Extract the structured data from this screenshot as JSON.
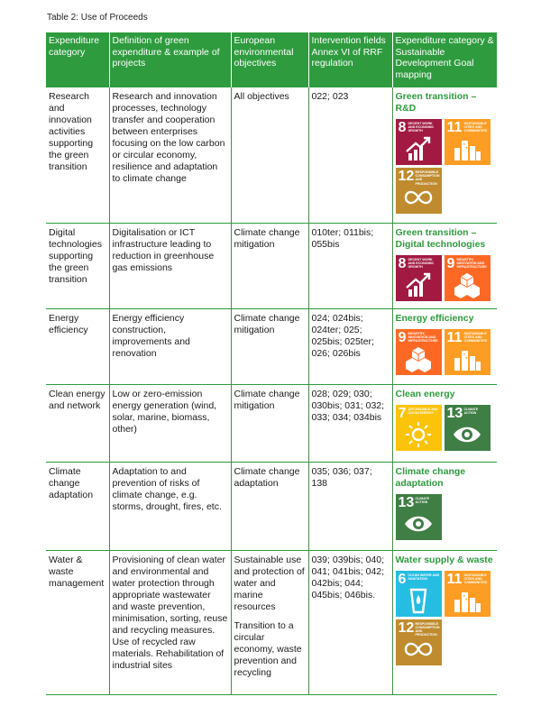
{
  "caption": "Table 2: Use of Proceeds",
  "headers": [
    "Expenditure category",
    "Definition of green expenditure & example of projects",
    "European environmental objectives",
    "Intervention fields Annex VI of RRF regulation",
    "Expenditure category & Sustainable Development Goal mapping"
  ],
  "rows": [
    {
      "category": "Research and innovation activities supporting the green transition",
      "definition": "Research and innovation processes, technology transfer and cooperation between enterprises focusing on the low carbon or circular economy, resilience and adaptation to climate change",
      "objectives": "All objectives",
      "objectives2": "",
      "fields": "022; 023",
      "sdg_title": "Green transition – R&D",
      "sdgs": [
        {
          "num": "8",
          "label": "Decent work and economic growth",
          "icon": "growth-chart-icon"
        },
        {
          "num": "11",
          "label": "Sustainable cities and communities",
          "icon": "city-buildings-icon"
        },
        {
          "num": "12",
          "label": "Responsible consumption and production",
          "icon": "infinity-loop-icon"
        }
      ]
    },
    {
      "category": "Digital technologies supporting the green transition",
      "definition": "Digitalisation or ICT infrastructure leading to reduction in greenhouse gas emissions",
      "objectives": "Climate change mitigation",
      "objectives2": "",
      "fields": "010ter; 011bis; 055bis",
      "sdg_title": "Green transition – Digital technologies",
      "sdgs": [
        {
          "num": "8",
          "label": "Decent work and economic growth",
          "icon": "growth-chart-icon"
        },
        {
          "num": "9",
          "label": "Industry, innovation and infrastructure",
          "icon": "cubes-icon"
        }
      ]
    },
    {
      "category": "Energy efficiency",
      "definition": "Energy efficiency construction, improvements and renovation",
      "objectives": "Climate change mitigation",
      "objectives2": "",
      "fields": "024; 024bis; 024ter; 025; 025bis; 025ter; 026; 026bis",
      "sdg_title": "Energy efficiency",
      "sdgs": [
        {
          "num": "9",
          "label": "Industry, innovation and infrastructure",
          "icon": "cubes-icon"
        },
        {
          "num": "11",
          "label": "Sustainable cities and communities",
          "icon": "city-buildings-icon"
        }
      ]
    },
    {
      "category": "Clean energy and network",
      "definition": "Low or zero-emission energy generation (wind, solar, marine, biomass, other)",
      "objectives": "Climate change mitigation",
      "objectives2": "",
      "fields": "028; 029; 030; 030bis; 031; 032; 033; 034; 034bis",
      "sdg_title": "Clean energy",
      "sdgs": [
        {
          "num": "7",
          "label": "Affordable and clean energy",
          "icon": "sun-power-icon"
        },
        {
          "num": "13",
          "label": "Climate action",
          "icon": "earth-eye-icon"
        }
      ]
    },
    {
      "category": "Climate change adaptation",
      "definition": "Adaptation to and prevention of risks of climate change, e.g. storms, drought, fires, etc.",
      "objectives": "Climate change adaptation",
      "objectives2": "",
      "fields": "035; 036; 037; 138",
      "sdg_title": "Climate change adaptation",
      "sdgs": [
        {
          "num": "13",
          "label": "Climate action",
          "icon": "earth-eye-icon"
        }
      ]
    },
    {
      "category": "Water & waste management",
      "definition": "Provisioning of clean water and environmental and water protection through appropriate wastewater and waste prevention, minimisation, sorting, reuse and recycling measures. Use of recycled raw materials. Rehabilitation of industrial sites",
      "objectives": "Sustainable use and protection of water and marine resources",
      "objectives2": "Transition to a circular economy, waste prevention and recycling",
      "fields": "039; 039bis; 040; 041; 041bis; 042; 042bis; 044; 045bis; 046bis.",
      "sdg_title": "Water supply & waste",
      "sdgs": [
        {
          "num": "6",
          "label": "Clean water and sanitation",
          "icon": "water-glass-icon"
        },
        {
          "num": "11",
          "label": "Sustainable cities and communities",
          "icon": "city-buildings-icon"
        },
        {
          "num": "12",
          "label": "Responsible consumption and production",
          "icon": "infinity-loop-icon"
        }
      ]
    }
  ]
}
